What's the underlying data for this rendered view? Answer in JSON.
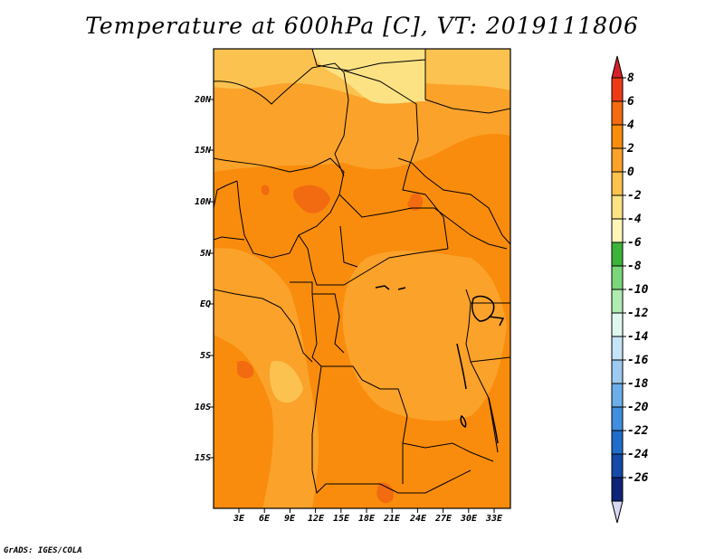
{
  "title": "Temperature at 600hPa [C], VT: 2019111806",
  "lat_labels": [
    "20N",
    "15N",
    "10N",
    "5N",
    "EQ",
    "5S",
    "10S",
    "15S"
  ],
  "lon_labels": [
    "3E",
    "6E",
    "9E",
    "12E",
    "15E",
    "18E",
    "21E",
    "24E",
    "27E",
    "30E",
    "33E"
  ],
  "colorbar": {
    "labels": [
      "8",
      "6",
      "4",
      "2",
      "0",
      "-2",
      "-4",
      "-6",
      "-8",
      "-10",
      "-12",
      "-14",
      "-16",
      "-18",
      "-20",
      "-22",
      "-24",
      "-26"
    ],
    "colors": [
      "#d6212a",
      "#ee3a17",
      "#f26b10",
      "#f98c0c",
      "#fba22a",
      "#fcc24f",
      "#fde284",
      "#fff6b8",
      "#3cb43c",
      "#7ad67a",
      "#b0ecb0",
      "#e0f7f0",
      "#c4e4f8",
      "#9ccaf0",
      "#6caeea",
      "#3f8fde",
      "#1f6dc8",
      "#1449a8",
      "#0e237a",
      "#d8d8f2"
    ]
  },
  "map_colors": {
    "warmest": "#f26b10",
    "warm": "#f98c0c",
    "mild": "#fba22a",
    "cool": "#fcc24f",
    "coolest": "#fde284"
  },
  "credit": "GrADS: IGES/COLA"
}
